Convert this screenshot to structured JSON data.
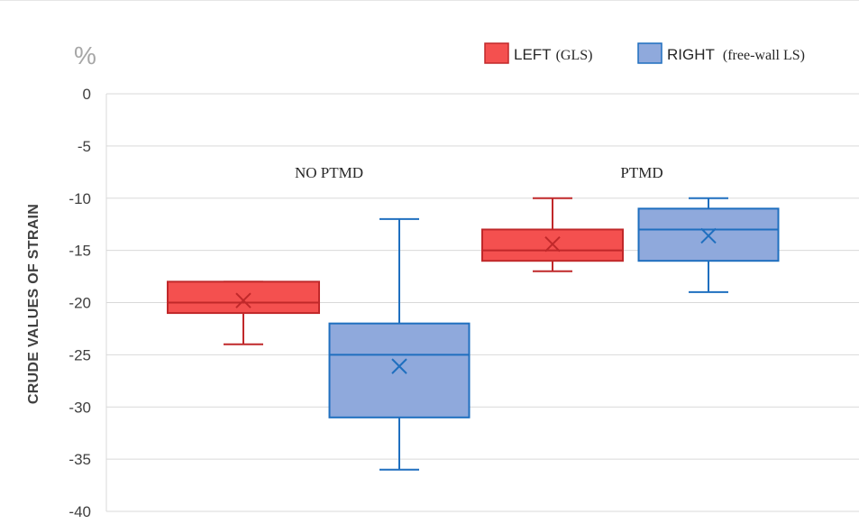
{
  "chart_data": {
    "type": "box",
    "unit_label": "%",
    "ylabel": "CRUDE VALUES OF STRAIN",
    "ylim": [
      -40,
      0
    ],
    "y_ticks": [
      0,
      -5,
      -10,
      -15,
      -20,
      -25,
      -30,
      -35,
      -40
    ],
    "grid": "horizontal",
    "legend_position": "top-right",
    "groups": [
      "NO PTMD",
      "PTMD"
    ],
    "series": [
      {
        "name": "LEFT",
        "name_note": "(GLS)",
        "fill": "#f4504f",
        "stroke": "#c0282a",
        "boxes": [
          {
            "group": "NO PTMD",
            "min": -24,
            "q1": -21,
            "median": -20,
            "q3": -18,
            "max": -18,
            "mean": -19.8
          },
          {
            "group": "PTMD",
            "min": -17,
            "q1": -16,
            "median": -15,
            "q3": -13,
            "max": -10,
            "mean": -14.4
          }
        ]
      },
      {
        "name": "RIGHT",
        "name_note": "(free-wall LS)",
        "fill": "#8fa9dc",
        "stroke": "#1f6fbf",
        "boxes": [
          {
            "group": "NO PTMD",
            "min": -36,
            "q1": -31,
            "median": -25,
            "q3": -22,
            "max": -12,
            "mean": -26.1
          },
          {
            "group": "PTMD",
            "min": -19,
            "q1": -16,
            "median": -13,
            "q3": -11,
            "max": -10,
            "mean": -13.6
          }
        ]
      }
    ]
  }
}
